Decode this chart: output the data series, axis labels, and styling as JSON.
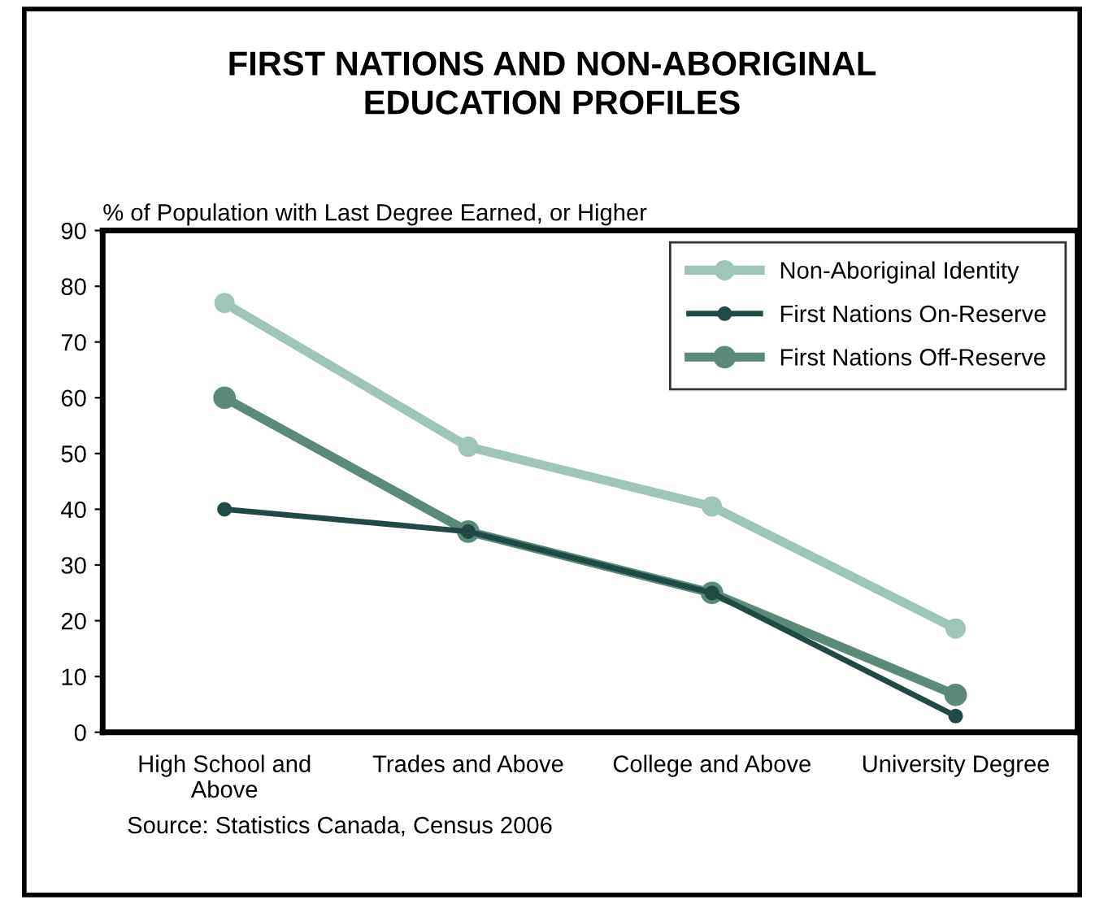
{
  "chart_data": {
    "type": "line",
    "title": "FIRST NATIONS AND NON-ABORIGINAL\nEDUCATION PROFILES",
    "ylabel": "% of Population with Last Degree Earned, or Higher",
    "categories": [
      "High School and\nAbove",
      "Trades and Above",
      "College and Above",
      "University Degree"
    ],
    "series": [
      {
        "name": "Non-Aboriginal Identity",
        "color": "#9fc5bb",
        "values": [
          77,
          51.2,
          40.5,
          18.6
        ]
      },
      {
        "name": "First Nations On-Reserve",
        "color": "#214a46",
        "values": [
          40,
          36,
          25,
          2.9
        ]
      },
      {
        "name": "First Nations Off-Reserve",
        "color": "#5b8a79",
        "values": [
          60,
          36,
          25,
          6.7
        ]
      }
    ],
    "ylim": [
      0,
      90
    ],
    "yticks": [
      0,
      10,
      20,
      30,
      40,
      50,
      60,
      70,
      80,
      90
    ],
    "grid": false,
    "legend": "top right",
    "marker": "circle",
    "line_style": "solid",
    "annotations": [
      "Source: Statistics Canada, Census 2006"
    ]
  }
}
